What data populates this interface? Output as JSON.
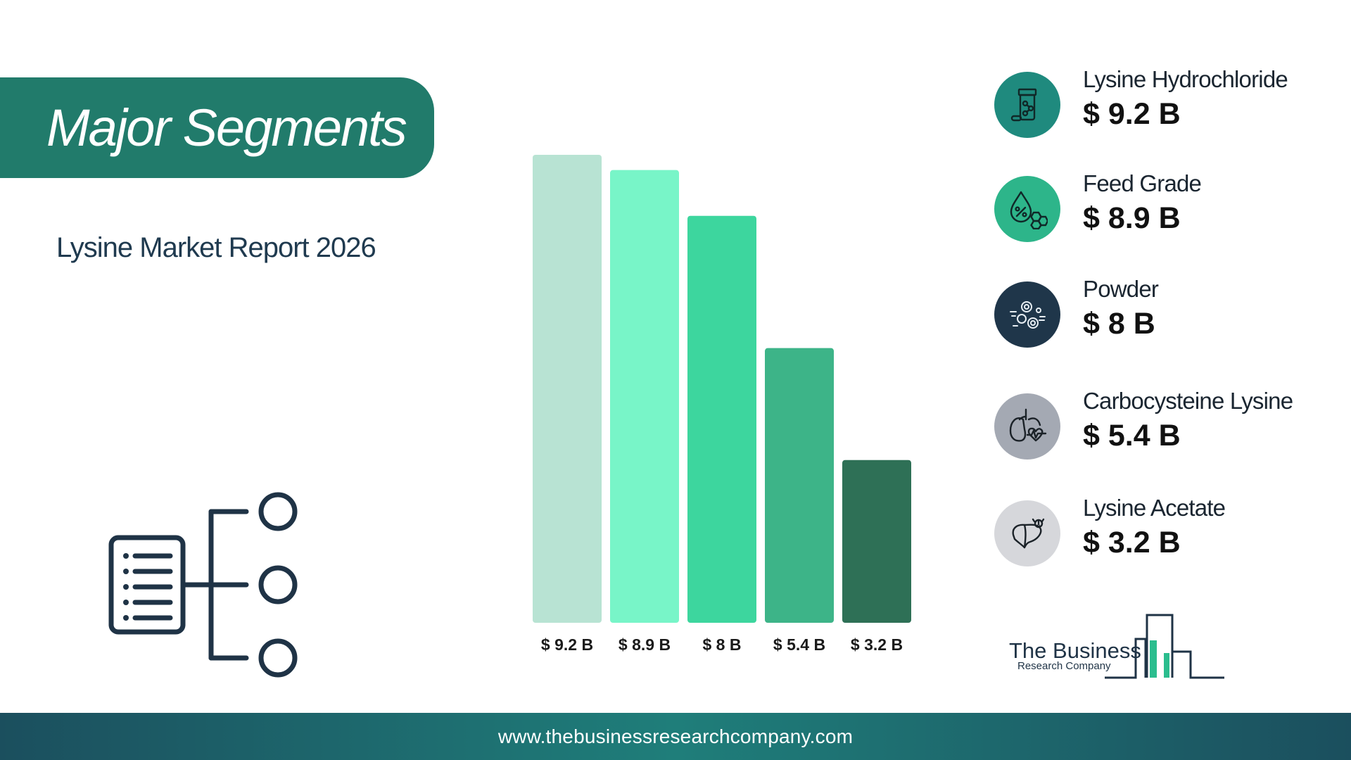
{
  "header": {
    "title": "Major Segments",
    "subtitle": "Lysine Market Report 2026"
  },
  "chart_data": {
    "type": "bar",
    "categories": [
      "Lysine Hydrochloride",
      "Feed Grade",
      "Powder",
      "Carbocysteine Lysine",
      "Lysine Acetate"
    ],
    "values": [
      9.2,
      8.9,
      8.0,
      5.4,
      3.2
    ],
    "labels": [
      "$ 9.2 B",
      "$ 8.9 B",
      "$ 8 B",
      "$ 5.4 B",
      "$ 3.2 B"
    ],
    "unit": "$ B",
    "colors": [
      "#b8e3d3",
      "#78f5c8",
      "#3dd69e",
      "#3db488",
      "#2e7056"
    ],
    "ylim": [
      0,
      9.2
    ],
    "grid": false
  },
  "legend": [
    {
      "label": "Lysine Hydrochloride",
      "value": "$ 9.2 B",
      "color": "#1f8a7e",
      "icon": "medicine-bottle-icon"
    },
    {
      "label": "Feed Grade",
      "value": "$ 8.9 B",
      "color": "#2db58a",
      "icon": "nutrient-drop-icon"
    },
    {
      "label": "Powder",
      "value": "$ 8 B",
      "color": "#1f364a",
      "icon": "particles-icon"
    },
    {
      "label": "Carbocysteine Lysine",
      "value": "$ 5.4 B",
      "color": "#a4a9b3",
      "icon": "lungs-heartbeat-icon"
    },
    {
      "label": "Lysine Acetate",
      "value": "$ 3.2 B",
      "color": "#d6d7db",
      "icon": "liver-icon"
    }
  ],
  "logo": {
    "line1": "The Business",
    "line2": "Research Company"
  },
  "footer": {
    "url": "www.thebusinessresearchcompany.com"
  }
}
